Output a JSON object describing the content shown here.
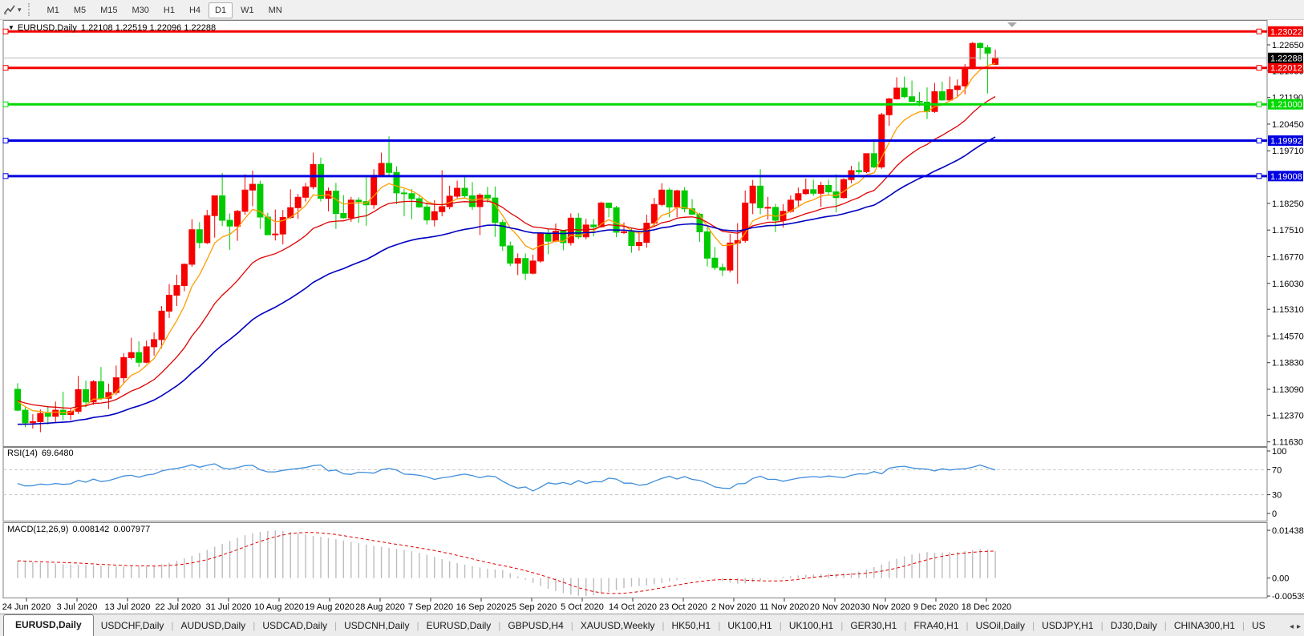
{
  "toolbar": {
    "tool_icon": "chart-cursor-icon",
    "dropdown_caret": "▾",
    "timeframes": [
      {
        "label": "M1"
      },
      {
        "label": "M5"
      },
      {
        "label": "M15"
      },
      {
        "label": "M30"
      },
      {
        "label": "H1"
      },
      {
        "label": "H4"
      },
      {
        "label": "D1"
      },
      {
        "label": "W1"
      },
      {
        "label": "MN"
      }
    ],
    "active_timeframe": "D1"
  },
  "chart": {
    "title_symbol": "EURUSD,Daily",
    "title_ohlc": "1.22108 1.22519 1.22096 1.22288",
    "title_marker": "▼",
    "current_price_label": "1.22288",
    "current_price_value": 1.22288,
    "price_axis_ticks": [
      "1.22650",
      "1.21930",
      "1.21190",
      "1.20450",
      "1.19710",
      "1.18250",
      "1.17510",
      "1.16770",
      "1.16030",
      "1.15310",
      "1.14570",
      "1.13830",
      "1.13090",
      "1.12370",
      "1.11630"
    ],
    "hlines": [
      {
        "label": "1.23022",
        "value": 1.23022,
        "color": "#f40000"
      },
      {
        "label": "1.22012",
        "value": 1.22012,
        "color": "#f40000"
      },
      {
        "label": "1.21000",
        "value": 1.21,
        "color": "#00d800"
      },
      {
        "label": "1.19992",
        "value": 1.19992,
        "color": "#0000e0"
      },
      {
        "label": "1.19008",
        "value": 1.19008,
        "color": "#0000e0"
      }
    ],
    "colors": {
      "up_candle": "#f60000",
      "down_candle": "#00ca00",
      "ma_fast": "#ff9c00",
      "ma_medium": "#e00000",
      "ma_slow": "#0000c0",
      "current_price_line": "#b8b8b8",
      "current_price_tag_bg": "#000000",
      "rsi_line": "#3f8edc",
      "macd_hist": "#bcbcbc",
      "macd_signal": "#e00000"
    }
  },
  "chart_data": {
    "type": "candlestick",
    "symbol": "EURUSD",
    "timeframe": "Daily",
    "date_labels": [
      "24 Jun 2020",
      "3 Jul 2020",
      "13 Jul 2020",
      "22 Jul 2020",
      "31 Jul 2020",
      "10 Aug 2020",
      "19 Aug 2020",
      "28 Aug 2020",
      "7 Sep 2020",
      "16 Sep 2020",
      "25 Sep 2020",
      "5 Oct 2020",
      "14 Oct 2020",
      "23 Oct 2020",
      "2 Nov 2020",
      "11 Nov 2020",
      "20 Nov 2020",
      "30 Nov 2020",
      "9 Dec 2020",
      "18 Dec 2020"
    ],
    "ylim": [
      1.11517,
      1.23339
    ],
    "candles_ohlc": [
      [
        1.1309,
        1.1326,
        1.1248,
        1.1251
      ],
      [
        1.1251,
        1.1261,
        1.1204,
        1.1216
      ],
      [
        1.1216,
        1.124,
        1.12,
        1.1219
      ],
      [
        1.1219,
        1.1253,
        1.119,
        1.1242
      ],
      [
        1.1242,
        1.1262,
        1.1211,
        1.1234
      ],
      [
        1.1234,
        1.1275,
        1.1217,
        1.1251
      ],
      [
        1.1251,
        1.1302,
        1.1223,
        1.1239
      ],
      [
        1.1239,
        1.1255,
        1.1224,
        1.1248
      ],
      [
        1.1248,
        1.1346,
        1.1241,
        1.1308
      ],
      [
        1.1308,
        1.1333,
        1.1259,
        1.1274
      ],
      [
        1.1274,
        1.1334,
        1.1266,
        1.133
      ],
      [
        1.133,
        1.1371,
        1.1279,
        1.1284
      ],
      [
        1.1284,
        1.1325,
        1.1254,
        1.13
      ],
      [
        1.13,
        1.1375,
        1.1293,
        1.1341
      ],
      [
        1.1341,
        1.1409,
        1.1326,
        1.1397
      ],
      [
        1.1397,
        1.1452,
        1.1392,
        1.1411
      ],
      [
        1.1411,
        1.1442,
        1.1371,
        1.1384
      ],
      [
        1.1384,
        1.1444,
        1.1381,
        1.1427
      ],
      [
        1.1427,
        1.1467,
        1.1402,
        1.1447
      ],
      [
        1.1447,
        1.154,
        1.1423,
        1.1526
      ],
      [
        1.1526,
        1.1601,
        1.1507,
        1.157
      ],
      [
        1.157,
        1.1627,
        1.154,
        1.1597
      ],
      [
        1.1597,
        1.1658,
        1.1581,
        1.1656
      ],
      [
        1.1656,
        1.1781,
        1.1649,
        1.1752
      ],
      [
        1.1752,
        1.1773,
        1.17,
        1.1716
      ],
      [
        1.1716,
        1.1807,
        1.1712,
        1.1791
      ],
      [
        1.1791,
        1.1847,
        1.173,
        1.1846
      ],
      [
        1.1846,
        1.1909,
        1.1762,
        1.1778
      ],
      [
        1.1778,
        1.1797,
        1.1696,
        1.1762
      ],
      [
        1.1762,
        1.1807,
        1.1721,
        1.1803
      ],
      [
        1.1803,
        1.1906,
        1.1793,
        1.1862
      ],
      [
        1.1862,
        1.1916,
        1.1817,
        1.1878
      ],
      [
        1.1878,
        1.1888,
        1.1754,
        1.1787
      ],
      [
        1.1787,
        1.1799,
        1.1737,
        1.1738
      ],
      [
        1.1738,
        1.1808,
        1.1722,
        1.174
      ],
      [
        1.174,
        1.1807,
        1.1711,
        1.1786
      ],
      [
        1.1786,
        1.1864,
        1.1782,
        1.1813
      ],
      [
        1.1813,
        1.1851,
        1.1782,
        1.1842
      ],
      [
        1.1842,
        1.1882,
        1.183,
        1.1871
      ],
      [
        1.1871,
        1.1966,
        1.1864,
        1.1933
      ],
      [
        1.1933,
        1.1952,
        1.183,
        1.1839
      ],
      [
        1.1839,
        1.1869,
        1.1803,
        1.1859
      ],
      [
        1.1859,
        1.1882,
        1.1754,
        1.1797
      ],
      [
        1.1797,
        1.1848,
        1.1782,
        1.1785
      ],
      [
        1.1785,
        1.1843,
        1.1774,
        1.1834
      ],
      [
        1.1834,
        1.1842,
        1.1771,
        1.183
      ],
      [
        1.183,
        1.1902,
        1.1763,
        1.1821
      ],
      [
        1.1821,
        1.192,
        1.181,
        1.1903
      ],
      [
        1.1903,
        1.1966,
        1.1898,
        1.1936
      ],
      [
        1.1936,
        1.2011,
        1.1901,
        1.1911
      ],
      [
        1.1911,
        1.1928,
        1.1823,
        1.1854
      ],
      [
        1.1854,
        1.1865,
        1.1789,
        1.1852
      ],
      [
        1.1852,
        1.1865,
        1.1781,
        1.1838
      ],
      [
        1.1838,
        1.1848,
        1.1813,
        1.1815
      ],
      [
        1.1815,
        1.1827,
        1.1766,
        1.1779
      ],
      [
        1.1779,
        1.1834,
        1.1761,
        1.1802
      ],
      [
        1.1802,
        1.1917,
        1.1789,
        1.1816
      ],
      [
        1.1816,
        1.1874,
        1.1809,
        1.1845
      ],
      [
        1.1845,
        1.1888,
        1.1839,
        1.1867
      ],
      [
        1.1867,
        1.1899,
        1.1841,
        1.1846
      ],
      [
        1.1846,
        1.1884,
        1.1807,
        1.1816
      ],
      [
        1.1816,
        1.1853,
        1.1737,
        1.1848
      ],
      [
        1.1848,
        1.1871,
        1.1827,
        1.184
      ],
      [
        1.184,
        1.1872,
        1.1732,
        1.1772
      ],
      [
        1.1772,
        1.178,
        1.1693,
        1.1707
      ],
      [
        1.1707,
        1.1719,
        1.1651,
        1.1659
      ],
      [
        1.1659,
        1.1686,
        1.1626,
        1.1672
      ],
      [
        1.1672,
        1.1686,
        1.1612,
        1.1631
      ],
      [
        1.1631,
        1.1683,
        1.1628,
        1.1665
      ],
      [
        1.1665,
        1.1745,
        1.166,
        1.1742
      ],
      [
        1.1742,
        1.1755,
        1.1684,
        1.172
      ],
      [
        1.172,
        1.1769,
        1.1717,
        1.1748
      ],
      [
        1.1748,
        1.1751,
        1.1695,
        1.1716
      ],
      [
        1.1716,
        1.1797,
        1.1708,
        1.1784
      ],
      [
        1.1784,
        1.1798,
        1.1726,
        1.1732
      ],
      [
        1.1732,
        1.1782,
        1.1725,
        1.1765
      ],
      [
        1.1765,
        1.1782,
        1.1733,
        1.176
      ],
      [
        1.176,
        1.183,
        1.1758,
        1.1826
      ],
      [
        1.1826,
        1.1827,
        1.1786,
        1.1813
      ],
      [
        1.1813,
        1.1818,
        1.1731,
        1.1745
      ],
      [
        1.1745,
        1.1772,
        1.174,
        1.1746
      ],
      [
        1.1746,
        1.1758,
        1.1688,
        1.1708
      ],
      [
        1.1708,
        1.1747,
        1.1694,
        1.1717
      ],
      [
        1.1717,
        1.1794,
        1.1702,
        1.177
      ],
      [
        1.177,
        1.184,
        1.176,
        1.1822
      ],
      [
        1.1822,
        1.1881,
        1.1817,
        1.1862
      ],
      [
        1.1862,
        1.1868,
        1.1786,
        1.1815
      ],
      [
        1.1815,
        1.1863,
        1.1787,
        1.186
      ],
      [
        1.186,
        1.187,
        1.18,
        1.181
      ],
      [
        1.181,
        1.1837,
        1.1793,
        1.1795
      ],
      [
        1.1795,
        1.1799,
        1.1718,
        1.1746
      ],
      [
        1.1746,
        1.1759,
        1.165,
        1.1673
      ],
      [
        1.1673,
        1.1704,
        1.164,
        1.1647
      ],
      [
        1.1647,
        1.1658,
        1.1623,
        1.164
      ],
      [
        1.164,
        1.174,
        1.1633,
        1.1715
      ],
      [
        1.1715,
        1.177,
        1.1602,
        1.1722
      ],
      [
        1.1722,
        1.1861,
        1.1716,
        1.1826
      ],
      [
        1.1826,
        1.189,
        1.1795,
        1.1873
      ],
      [
        1.1873,
        1.192,
        1.1795,
        1.1813
      ],
      [
        1.1813,
        1.1843,
        1.178,
        1.1814
      ],
      [
        1.1814,
        1.1824,
        1.1745,
        1.1778
      ],
      [
        1.1778,
        1.1823,
        1.1758,
        1.1803
      ],
      [
        1.1803,
        1.1847,
        1.1799,
        1.1834
      ],
      [
        1.1834,
        1.1869,
        1.1814,
        1.1852
      ],
      [
        1.1852,
        1.1894,
        1.1849,
        1.1863
      ],
      [
        1.1863,
        1.1891,
        1.1846,
        1.1853
      ],
      [
        1.1853,
        1.1885,
        1.1815,
        1.1875
      ],
      [
        1.1875,
        1.1891,
        1.1849,
        1.1857
      ],
      [
        1.1857,
        1.1906,
        1.18,
        1.1841
      ],
      [
        1.1841,
        1.1895,
        1.1838,
        1.1891
      ],
      [
        1.1891,
        1.1929,
        1.1881,
        1.1916
      ],
      [
        1.1916,
        1.1941,
        1.1906,
        1.1913
      ],
      [
        1.1913,
        1.1964,
        1.1909,
        1.1963
      ],
      [
        1.1963,
        1.2003,
        1.1923,
        1.1926
      ],
      [
        1.1926,
        1.2076,
        1.1921,
        1.2071
      ],
      [
        1.2071,
        1.2118,
        1.204,
        1.2115
      ],
      [
        1.2115,
        1.2175,
        1.2113,
        1.2145
      ],
      [
        1.2145,
        1.2177,
        1.2117,
        1.2121
      ],
      [
        1.2121,
        1.2166,
        1.2107,
        1.2108
      ],
      [
        1.2108,
        1.2134,
        1.2095,
        1.2106
      ],
      [
        1.2106,
        1.2147,
        1.2059,
        1.208
      ],
      [
        1.208,
        1.2159,
        1.2076,
        1.2135
      ],
      [
        1.2135,
        1.2163,
        1.211,
        1.2112
      ],
      [
        1.2112,
        1.2177,
        1.211,
        1.2141
      ],
      [
        1.2141,
        1.2169,
        1.2122,
        1.2151
      ],
      [
        1.2151,
        1.2212,
        1.2128,
        1.2199
      ],
      [
        1.2199,
        1.2273,
        1.2197,
        1.2269
      ],
      [
        1.2269,
        1.2272,
        1.2224,
        1.2257
      ],
      [
        1.2257,
        1.2265,
        1.213,
        1.2242
      ],
      [
        1.22108,
        1.22519,
        1.22096,
        1.22288
      ]
    ],
    "moving_averages": [
      {
        "name": "fast",
        "alpha": 0.26,
        "seed": 1.1285
      },
      {
        "name": "medium",
        "alpha": 0.1,
        "seed": 1.128
      },
      {
        "name": "slow",
        "alpha": 0.048,
        "seed": 1.121
      }
    ]
  },
  "rsi": {
    "name": "RSI(14)",
    "value": "69.6480",
    "axis_labels": [
      "100",
      "70",
      "30",
      "0"
    ],
    "axis_values": [
      100,
      70,
      30,
      0
    ],
    "dashed_levels": [
      70,
      30
    ],
    "values": [
      48,
      44,
      44.5,
      47,
      46,
      48,
      46.5,
      47.5,
      53,
      50,
      55,
      51,
      52.5,
      56,
      60,
      61,
      58,
      61.5,
      63,
      68,
      70.5,
      72,
      74.5,
      78,
      74,
      77,
      79.5,
      73,
      71,
      73.5,
      76.5,
      77,
      70,
      66.5,
      66.5,
      69,
      70.5,
      72,
      73.5,
      76.5,
      77.5,
      68,
      69.5,
      63.5,
      62.5,
      66,
      65.5,
      64.5,
      70,
      72,
      69.5,
      63,
      62.5,
      61,
      58.5,
      54.5,
      57,
      58.5,
      61,
      63,
      60.5,
      57,
      60,
      59,
      51.5,
      45,
      40.5,
      42.5,
      36,
      42,
      49,
      47,
      49.5,
      46.5,
      52.5,
      48,
      51,
      50.5,
      56.5,
      55,
      48.5,
      48.6,
      45,
      46.5,
      51.5,
      56,
      59.5,
      55,
      59,
      54.5,
      53,
      48.5,
      42.5,
      40.5,
      40,
      47.5,
      48,
      56,
      59.5,
      54.5,
      54.6,
      51.5,
      54,
      56.5,
      58,
      59,
      58,
      60,
      58.5,
      57,
      61,
      63.5,
      63,
      67,
      63.5,
      72.5,
      74.5,
      75.5,
      73,
      71.5,
      71,
      68,
      71.5,
      69.5,
      71,
      71.5,
      74,
      77.5,
      73.5,
      69.65
    ]
  },
  "macd": {
    "name": "MACD(12,26,9)",
    "main_value": "0.008142",
    "signal_value": "0.007977",
    "axis_labels": [
      "0.014384",
      "0.00",
      "-0.005396"
    ],
    "axis_values": [
      0.014384,
      0,
      -0.005396
    ],
    "signal_period": 9,
    "histogram": [
      0.0052,
      0.005,
      0.0048,
      0.00465,
      0.0045,
      0.00435,
      0.0042,
      0.0041,
      0.004,
      0.0039,
      0.0038,
      0.0037,
      0.0036,
      0.00355,
      0.0035,
      0.00355,
      0.0036,
      0.0037,
      0.0038,
      0.0042,
      0.0046,
      0.0052,
      0.0059,
      0.0067,
      0.0076,
      0.0085,
      0.0094,
      0.0103,
      0.0112,
      0.0121,
      0.0129,
      0.0135,
      0.0139,
      0.0142,
      0.01435,
      0.0142,
      0.0139,
      0.0135,
      0.0131,
      0.0127,
      0.0124,
      0.0121,
      0.0117,
      0.0113,
      0.0109,
      0.0105,
      0.0101,
      0.0097,
      0.0094,
      0.0091,
      0.0088,
      0.0085,
      0.0081,
      0.0076,
      0.007,
      0.0064,
      0.0057,
      0.0051,
      0.0045,
      0.004,
      0.0036,
      0.0032,
      0.0028,
      0.0026,
      0.0024,
      0.0015,
      0.0005,
      -0.0005,
      -0.0015,
      -0.0024,
      -0.0032,
      -0.0039,
      -0.0045,
      -0.005,
      -0.0053,
      -0.0054,
      -0.0052,
      -0.0048,
      -0.0042,
      -0.0036,
      -0.003,
      -0.0026,
      -0.0024,
      -0.0022,
      -0.0019,
      -0.0015,
      -0.001,
      -0.0006,
      -0.0002,
      0.0001,
      0.0003,
      0.0001,
      -0.0003,
      -0.0009,
      -0.0014,
      -0.0017,
      -0.0016,
      -0.0012,
      -0.0007,
      -0.0002,
      0.0002,
      0.0004,
      0.0006,
      0.0008,
      0.001,
      0.0011,
      0.0012,
      0.0013,
      0.0013,
      0.0014,
      0.0016,
      0.002,
      0.0026,
      0.0033,
      0.0041,
      0.005,
      0.0058,
      0.0065,
      0.0071,
      0.0075,
      0.0078,
      0.0076,
      0.0077,
      0.0078,
      0.0079,
      0.0081,
      0.0084,
      0.0088,
      0.0086,
      0.008142
    ]
  },
  "tabbar": {
    "tabs": [
      {
        "label": "EURUSD,Daily",
        "active": true
      },
      {
        "label": "USDCHF,Daily"
      },
      {
        "label": "AUDUSD,Daily"
      },
      {
        "label": "USDCAD,Daily"
      },
      {
        "label": "USDCNH,Daily"
      },
      {
        "label": "EURUSD,Daily"
      },
      {
        "label": "GBPUSD,H4"
      },
      {
        "label": "XAUUSD,Weekly"
      },
      {
        "label": "HK50,H1"
      },
      {
        "label": "UK100,H1"
      },
      {
        "label": "UK100,H1"
      },
      {
        "label": "GER30,H1"
      },
      {
        "label": "FRA40,H1"
      },
      {
        "label": "USOil,Daily"
      },
      {
        "label": "USDJPY,H1"
      },
      {
        "label": "DJ30,Daily"
      },
      {
        "label": "CHINA300,H1"
      },
      {
        "label": "US",
        "truncated": true
      }
    ],
    "scroll_left": "◂",
    "scroll_right": "▸"
  }
}
